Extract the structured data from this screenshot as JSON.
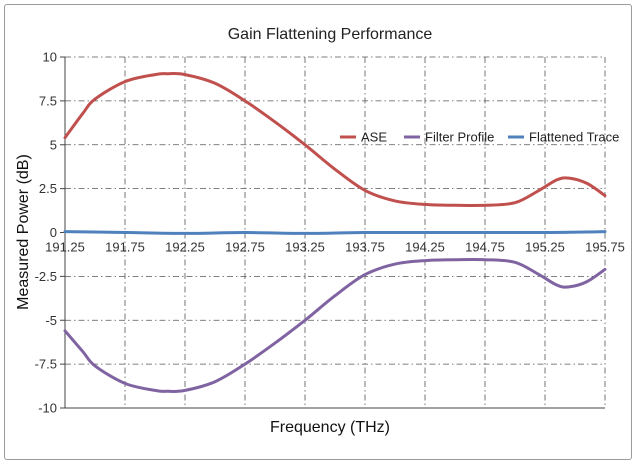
{
  "chart_data": {
    "type": "line",
    "title": "Gain Flattening Performance",
    "xlabel": "Frequency (THz)",
    "ylabel": "Measured  Power (dB)",
    "xlim": [
      191.25,
      195.75
    ],
    "ylim": [
      -10,
      10
    ],
    "x_ticks": [
      "191.25",
      "191.75",
      "192.25",
      "192.75",
      "193.25",
      "193.75",
      "194.25",
      "194.75",
      "195.25",
      "195.75"
    ],
    "y_ticks": [
      "-10",
      "-7.5",
      "-5",
      "-2.5",
      "0",
      "2.5",
      "5",
      "7.5",
      "10"
    ],
    "grid": true,
    "legend_position": "right, inside plot",
    "series": [
      {
        "name": "ASE",
        "color": "#c0504d",
        "x": [
          191.25,
          191.4,
          191.5,
          191.75,
          192.0,
          192.1,
          192.25,
          192.5,
          192.75,
          193.0,
          193.25,
          193.5,
          193.75,
          194.0,
          194.25,
          194.5,
          194.75,
          195.0,
          195.2,
          195.35,
          195.45,
          195.6,
          195.75
        ],
        "y": [
          5.4,
          6.8,
          7.6,
          8.6,
          9.0,
          9.05,
          9.0,
          8.5,
          7.5,
          6.3,
          5.0,
          3.6,
          2.4,
          1.8,
          1.6,
          1.55,
          1.55,
          1.7,
          2.4,
          3.0,
          3.1,
          2.8,
          2.1
        ]
      },
      {
        "name": "Filter Profile",
        "color": "#8064a2",
        "x": [
          191.25,
          191.4,
          191.5,
          191.75,
          192.0,
          192.1,
          192.25,
          192.5,
          192.75,
          193.0,
          193.25,
          193.5,
          193.75,
          194.0,
          194.25,
          194.5,
          194.75,
          195.0,
          195.2,
          195.35,
          195.45,
          195.6,
          195.75
        ],
        "y": [
          -5.6,
          -6.8,
          -7.6,
          -8.6,
          -9.0,
          -9.05,
          -9.0,
          -8.5,
          -7.5,
          -6.3,
          -5.0,
          -3.6,
          -2.4,
          -1.8,
          -1.6,
          -1.55,
          -1.55,
          -1.7,
          -2.4,
          -3.0,
          -3.1,
          -2.8,
          -2.1
        ]
      },
      {
        "name": "Flattened Trace",
        "color": "#4f81bd",
        "x": [
          191.25,
          191.75,
          192.25,
          192.75,
          193.25,
          193.75,
          194.25,
          194.75,
          195.25,
          195.75
        ],
        "y": [
          0.05,
          0.0,
          -0.05,
          0.0,
          -0.05,
          0.0,
          0.0,
          0.0,
          0.0,
          0.05
        ]
      }
    ]
  }
}
